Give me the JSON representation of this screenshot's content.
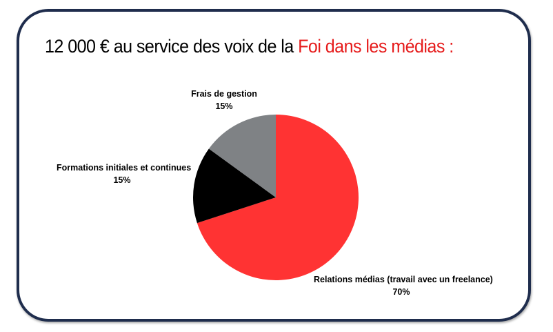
{
  "title": {
    "main": "12 000 € au service des voix de la ",
    "accent": "Foi dans les médias :"
  },
  "chart_data": {
    "type": "pie",
    "start_angle_deg": 0,
    "direction": "clockwise",
    "slices": [
      {
        "label": "Relations médias (travail avec un freelance)",
        "value": 70,
        "value_label": "70%",
        "color": "#ff3333"
      },
      {
        "label": "Formations initiales et continues",
        "value": 15,
        "value_label": "15%",
        "color": "#000000"
      },
      {
        "label": "Frais de gestion",
        "value": 15,
        "value_label": "15%",
        "color": "#7f8285"
      }
    ]
  },
  "colors": {
    "frame_border": "#1f2d4d",
    "accent": "#e61c1c"
  }
}
